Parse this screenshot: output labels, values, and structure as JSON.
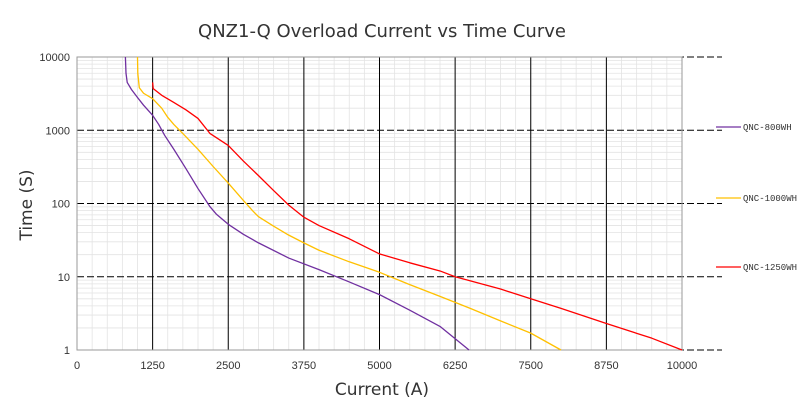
{
  "chart_data": {
    "type": "line",
    "title": "QNZ1-Q Overload Current  vs  Time Curve",
    "xlabel": "Current (A)",
    "ylabel": "Time (S)",
    "x_scale": "linear",
    "y_scale": "log",
    "xlim": [
      0,
      10000
    ],
    "ylim": [
      1,
      10000
    ],
    "x_ticks": [
      0,
      1250,
      2500,
      3750,
      5000,
      6250,
      7500,
      8750,
      10000
    ],
    "x_tick_labels": [
      "0",
      "1250",
      "2500",
      "3750",
      "5000",
      "6250",
      "7500",
      "8750",
      "10000"
    ],
    "y_ticks": [
      1,
      10,
      100,
      1000,
      10000
    ],
    "y_tick_labels": [
      "1",
      "10",
      "100",
      "1000",
      "10000"
    ],
    "grid": true,
    "legend_position": "right",
    "series": [
      {
        "name": "QNC-800WH",
        "color": "#7030a0",
        "points": [
          [
            800,
            10000
          ],
          [
            810,
            6000
          ],
          [
            830,
            4500
          ],
          [
            900,
            3600
          ],
          [
            1000,
            2800
          ],
          [
            1100,
            2200
          ],
          [
            1250,
            1600
          ],
          [
            1350,
            1200
          ],
          [
            1450,
            850
          ],
          [
            1600,
            550
          ],
          [
            1800,
            300
          ],
          [
            2000,
            160
          ],
          [
            2200,
            90
          ],
          [
            2300,
            72
          ],
          [
            2500,
            52
          ],
          [
            2750,
            38
          ],
          [
            3000,
            29
          ],
          [
            3500,
            18
          ],
          [
            4000,
            12.5
          ],
          [
            4500,
            8.5
          ],
          [
            5000,
            5.7
          ],
          [
            5500,
            3.5
          ],
          [
            6000,
            2.1
          ],
          [
            6480,
            1
          ]
        ]
      },
      {
        "name": "QNC-1000WH",
        "color": "#ffc000",
        "points": [
          [
            1000,
            10000
          ],
          [
            1005,
            6000
          ],
          [
            1030,
            3800
          ],
          [
            1100,
            3200
          ],
          [
            1250,
            2700
          ],
          [
            1400,
            2000
          ],
          [
            1500,
            1500
          ],
          [
            1600,
            1200
          ],
          [
            1750,
            900
          ],
          [
            2000,
            550
          ],
          [
            2250,
            320
          ],
          [
            2500,
            190
          ],
          [
            2750,
            110
          ],
          [
            2900,
            80
          ],
          [
            3000,
            66
          ],
          [
            3250,
            49
          ],
          [
            3500,
            37
          ],
          [
            3750,
            29
          ],
          [
            4000,
            23
          ],
          [
            4500,
            16
          ],
          [
            5000,
            11.5
          ],
          [
            5500,
            7.8
          ],
          [
            6000,
            5.4
          ],
          [
            6500,
            3.7
          ],
          [
            7000,
            2.5
          ],
          [
            7500,
            1.7
          ],
          [
            8000,
            1
          ]
        ]
      },
      {
        "name": "QNC-1250WH",
        "color": "#ff0000",
        "points": [
          [
            1250,
            4500
          ],
          [
            1260,
            3700
          ],
          [
            1400,
            3000
          ],
          [
            1600,
            2400
          ],
          [
            1800,
            1900
          ],
          [
            2000,
            1450
          ],
          [
            2200,
            900
          ],
          [
            2500,
            620
          ],
          [
            2750,
            380
          ],
          [
            3000,
            240
          ],
          [
            3250,
            150
          ],
          [
            3500,
            95
          ],
          [
            3750,
            65
          ],
          [
            4000,
            50
          ],
          [
            4500,
            33
          ],
          [
            5000,
            20.5
          ],
          [
            5500,
            15.5
          ],
          [
            6000,
            12
          ],
          [
            6250,
            10
          ],
          [
            7000,
            6.8
          ],
          [
            7500,
            5
          ],
          [
            8000,
            3.7
          ],
          [
            8750,
            2.3
          ],
          [
            9500,
            1.45
          ],
          [
            10000,
            1
          ]
        ]
      }
    ]
  }
}
